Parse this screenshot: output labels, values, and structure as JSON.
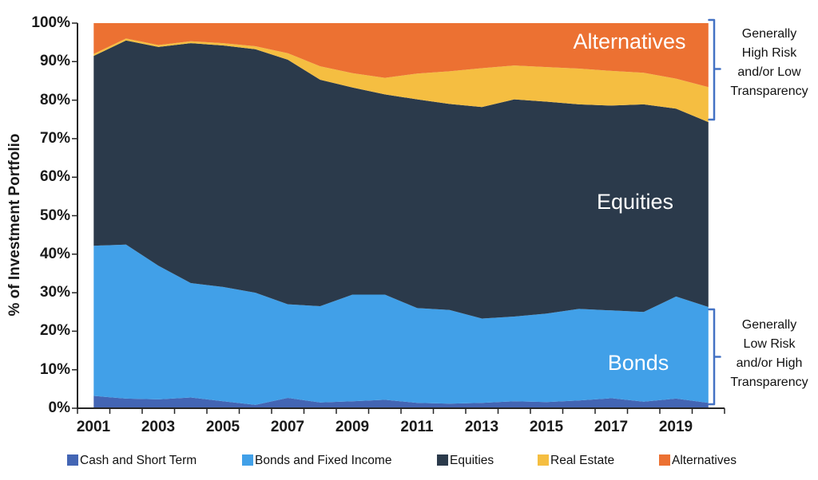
{
  "y_axis": {
    "title": "% of Investment Portfolio",
    "tick_labels": [
      "100%",
      "90%",
      "80%",
      "70%",
      "60%",
      "50%",
      "40%",
      "30%",
      "20%",
      "10%",
      "0%"
    ]
  },
  "x_axis": {
    "tick_labels": [
      "2001",
      "2003",
      "2005",
      "2007",
      "2009",
      "2011",
      "2013",
      "2015",
      "2017",
      "2019"
    ]
  },
  "area_labels": {
    "alternatives": "Alternatives",
    "equities": "Equities",
    "bonds": "Bonds"
  },
  "risk_notes": {
    "high": {
      "lines": [
        "Generally",
        "High Risk",
        "and/or Low",
        "Transparency"
      ]
    },
    "low": {
      "lines": [
        "Generally",
        "Low Risk",
        "and/or High",
        "Transparency"
      ]
    }
  },
  "legend": {
    "items": [
      {
        "label": "Cash and Short Term"
      },
      {
        "label": "Bonds and Fixed Income"
      },
      {
        "label": "Equities"
      },
      {
        "label": "Real Estate"
      },
      {
        "label": "Alternatives"
      }
    ]
  },
  "colors": {
    "axis": "#262626",
    "bracket": "#4472C4",
    "background": "#ffffff"
  },
  "chart_data": {
    "type": "area",
    "stacked": true,
    "title": "",
    "xlabel": "",
    "ylabel": "% of Investment Portfolio",
    "ylim": [
      0,
      100
    ],
    "y_tick_step": 10,
    "grid": false,
    "legend_position": "bottom",
    "x": [
      2001,
      2002,
      2003,
      2004,
      2005,
      2006,
      2007,
      2008,
      2009,
      2010,
      2011,
      2012,
      2013,
      2014,
      2015,
      2016,
      2017,
      2018,
      2019,
      2020
    ],
    "series": [
      {
        "name": "Cash and Short Term",
        "color": "#4365B4",
        "values": [
          3.2,
          2.5,
          2.3,
          2.8,
          1.8,
          0.9,
          2.7,
          1.5,
          1.8,
          2.2,
          1.4,
          1.2,
          1.4,
          1.8,
          1.6,
          2.0,
          2.6,
          1.7,
          2.5,
          1.4
        ]
      },
      {
        "name": "Bonds and Fixed Income",
        "color": "#41A0E8",
        "values": [
          39.0,
          40.0,
          34.7,
          29.7,
          29.7,
          29.1,
          24.3,
          25.0,
          27.7,
          27.3,
          24.6,
          24.3,
          21.9,
          22.0,
          23.0,
          23.8,
          22.8,
          23.3,
          26.5,
          24.9
        ]
      },
      {
        "name": "Equities",
        "color": "#2B3A4B",
        "values": [
          49.3,
          53.0,
          56.8,
          62.3,
          62.7,
          63.2,
          63.5,
          58.8,
          53.8,
          52.0,
          54.2,
          53.5,
          54.9,
          56.4,
          55.0,
          53.1,
          53.2,
          53.9,
          48.8,
          48.0
        ]
      },
      {
        "name": "Real Estate",
        "color": "#F5BE41",
        "values": [
          0.5,
          0.5,
          0.5,
          0.5,
          0.6,
          0.8,
          1.7,
          3.5,
          3.7,
          4.3,
          6.7,
          8.5,
          10.1,
          8.8,
          9.0,
          9.3,
          9.0,
          8.2,
          7.8,
          9.1
        ]
      },
      {
        "name": "Alternatives",
        "color": "#EC7132",
        "values": [
          8.0,
          4.0,
          5.7,
          4.7,
          5.2,
          6.0,
          7.8,
          11.2,
          13.0,
          14.2,
          13.1,
          12.5,
          11.7,
          11.0,
          11.4,
          11.8,
          12.4,
          12.9,
          14.4,
          16.6
        ]
      }
    ]
  }
}
